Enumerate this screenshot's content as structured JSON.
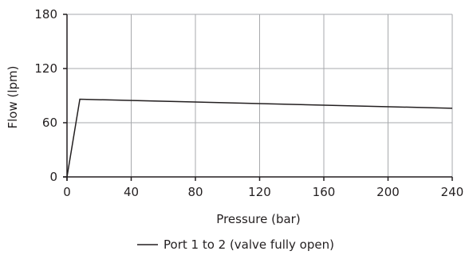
{
  "chart_data": {
    "type": "line",
    "xlabel": "Pressure (bar)",
    "ylabel": "Flow (lpm)",
    "xlim": [
      0,
      240
    ],
    "ylim": [
      0,
      180
    ],
    "xticks": [
      0,
      40,
      80,
      120,
      160,
      200,
      240
    ],
    "yticks": [
      0,
      60,
      120,
      180
    ],
    "grid": true,
    "legend_position": "bottom-center",
    "series": [
      {
        "name": "Port 1 to 2 (valve fully open)",
        "color": "#231f20",
        "x": [
          0,
          8,
          240
        ],
        "y": [
          0,
          86,
          76
        ]
      }
    ]
  }
}
